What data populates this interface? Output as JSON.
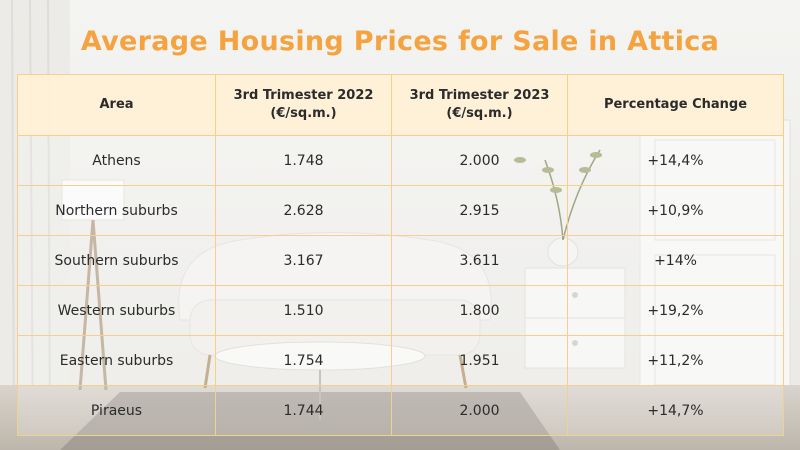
{
  "title": "Average Housing Prices for Sale in Attica",
  "table": {
    "headers": [
      "Area",
      [
        "3rd Trimester 2022",
        "(€/sq.m.)"
      ],
      [
        "3rd Trimester 2023",
        "(€/sq.m.)"
      ],
      "Percentage Change"
    ],
    "rows": [
      [
        "Athens",
        "1.748",
        "2.000",
        "+14,4%"
      ],
      [
        "Northern suburbs",
        "2.628",
        "2.915",
        "+10,9%"
      ],
      [
        "Southern suburbs",
        "3.167",
        "3.611",
        "+14%"
      ],
      [
        "Western suburbs",
        "1.510",
        "1.800",
        "+19,2%"
      ],
      [
        "Eastern suburbs",
        "1.754",
        "1.951",
        "+11,2%"
      ],
      [
        "Piraeus",
        "1.744",
        "2.000",
        "+14,7%"
      ]
    ]
  },
  "colors": {
    "title": "#f4a340",
    "table_border": "#f6cf8c",
    "header_fill": "#fff1d6"
  }
}
